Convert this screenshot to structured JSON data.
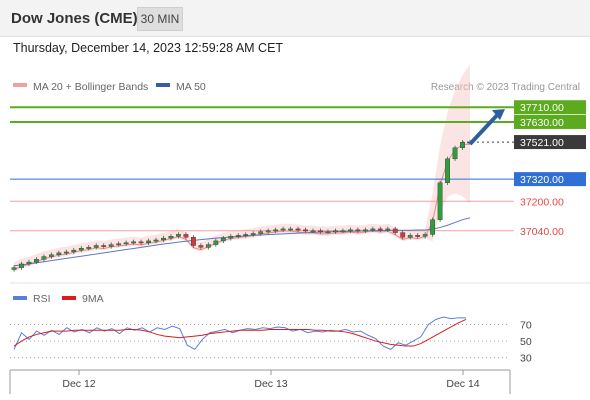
{
  "header": {
    "title": "Dow Jones (CME)",
    "timeframe": "30 MIN"
  },
  "datetime": "Thursday, December 14, 2023 12:59:28 AM CET",
  "legend": {
    "ma20": "MA 20 + Bollinger Bands",
    "ma50": "MA 50",
    "rsi": "RSI",
    "ma9": "9MA"
  },
  "credit": "Research © 2023 Trading Central",
  "colors": {
    "green": "#5cab1f",
    "blue": "#2f6fd6",
    "red": "#e46060",
    "dark": "#3a3a3a",
    "candle_up": "#2e9d3c",
    "candle_down": "#d23a3a"
  },
  "chart_data": {
    "type": "line",
    "ylim": [
      36800,
      37760
    ],
    "x_labels": [
      "Dec 12",
      "Dec 13",
      "Dec 14"
    ],
    "levels": [
      {
        "label": "37710.00",
        "value": 37710,
        "kind": "resistance"
      },
      {
        "label": "37630.00",
        "value": 37630,
        "kind": "resistance"
      },
      {
        "label": "37521.00",
        "value": 37521,
        "kind": "last"
      },
      {
        "label": "37320.00",
        "value": 37320,
        "kind": "pivot"
      },
      {
        "label": "37200.00",
        "value": 37200,
        "kind": "support"
      },
      {
        "label": "37040.00",
        "value": 37040,
        "kind": "support"
      }
    ],
    "price": [
      36840,
      36860,
      36870,
      36885,
      36900,
      36910,
      36920,
      36925,
      36935,
      36945,
      36950,
      36960,
      36955,
      36965,
      36970,
      36975,
      36980,
      36975,
      36985,
      36990,
      37000,
      37010,
      37020,
      37005,
      36960,
      36950,
      36965,
      36985,
      37000,
      37010,
      37015,
      37020,
      37025,
      37035,
      37040,
      37045,
      37050,
      37050,
      37045,
      37040,
      37040,
      37035,
      37035,
      37040,
      37040,
      37045,
      37040,
      37045,
      37050,
      37045,
      37050,
      37030,
      37005,
      37015,
      37010,
      37020,
      37100,
      37300,
      37430,
      37490,
      37520,
      37521
    ],
    "ma50": [
      36850,
      36855,
      36860,
      36866,
      36872,
      36878,
      36884,
      36890,
      36896,
      36902,
      36908,
      36914,
      36920,
      36926,
      36932,
      36938,
      36944,
      36950,
      36956,
      36962,
      36968,
      36973,
      36978,
      36983,
      36988,
      36992,
      36996,
      37000,
      37003,
      37006,
      37009,
      37012,
      37015,
      37017,
      37019,
      37021,
      37023,
      37025,
      37027,
      37029,
      37031,
      37033,
      37034,
      37035,
      37036,
      37037,
      37038,
      37039,
      37040,
      37041,
      37042,
      37042,
      37043,
      37043,
      37044,
      37044,
      37048,
      37058,
      37070,
      37085,
      37100,
      37110
    ],
    "rsi_ylim": [
      20,
      85
    ],
    "rsi_ticks": [
      70,
      50,
      30
    ],
    "rsi": [
      40,
      60,
      52,
      62,
      57,
      63,
      58,
      66,
      61,
      64,
      60,
      66,
      62,
      65,
      59,
      66,
      63,
      66,
      61,
      66,
      64,
      68,
      65,
      45,
      40,
      52,
      60,
      62,
      64,
      60,
      63,
      65,
      64,
      66,
      65,
      67,
      66,
      62,
      64,
      60,
      62,
      61,
      63,
      62,
      64,
      61,
      62,
      57,
      53,
      44,
      40,
      48,
      45,
      50,
      55,
      70,
      76,
      79,
      77,
      78,
      78
    ],
    "rsi_ma9": [
      44,
      50,
      55,
      58,
      60,
      62,
      62,
      62,
      63,
      63,
      63,
      63,
      63,
      63,
      63,
      64,
      64,
      63,
      61,
      58,
      56,
      55,
      54,
      55,
      56,
      57,
      59,
      60,
      61,
      62,
      63,
      63,
      63,
      63,
      64,
      64,
      64,
      64,
      64,
      64,
      63,
      63,
      62,
      62,
      61,
      59,
      56,
      53,
      50,
      48,
      46,
      45,
      44,
      44,
      47,
      52,
      57,
      62,
      67,
      72,
      76
    ]
  }
}
